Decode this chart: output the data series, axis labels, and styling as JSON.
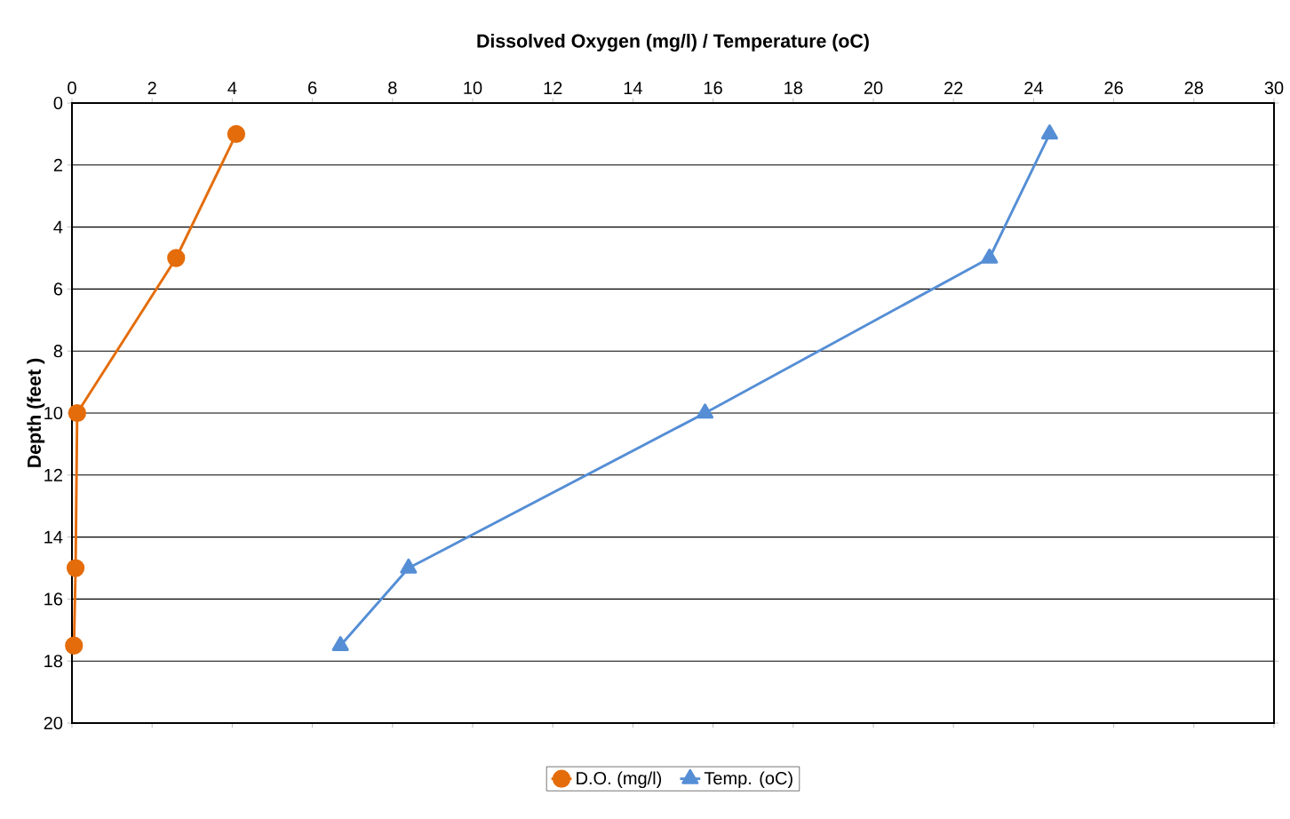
{
  "chart_data": {
    "type": "line",
    "xlabel": "Dissolved Oxygen (mg/l) / Temperature (oC)",
    "ylabel": "Depth (feet )",
    "series": [
      {
        "name": "D.O. (mg/l)",
        "color": "#e46c0a",
        "marker": "circle",
        "x": [
          4.1,
          2.6,
          0.13,
          0.09,
          0.05
        ],
        "values": [
          1,
          5,
          10,
          15,
          17.5
        ]
      },
      {
        "name": "Temp. (oC)",
        "color": "#558ed5",
        "marker": "triangle",
        "x": [
          24.4,
          22.9,
          15.8,
          8.4,
          6.7
        ],
        "values": [
          1,
          5,
          10,
          15,
          17.5
        ]
      }
    ],
    "xlim": [
      0,
      30
    ],
    "xticks": [
      0,
      2,
      4,
      6,
      8,
      10,
      12,
      14,
      16,
      18,
      20,
      22,
      24,
      26,
      28,
      30
    ],
    "ylim": [
      20,
      0
    ],
    "yticks": [
      0,
      2,
      4,
      6,
      8,
      10,
      12,
      14,
      16,
      18,
      20
    ],
    "grid": "y",
    "legend": "bottom",
    "line_style": "solid"
  }
}
